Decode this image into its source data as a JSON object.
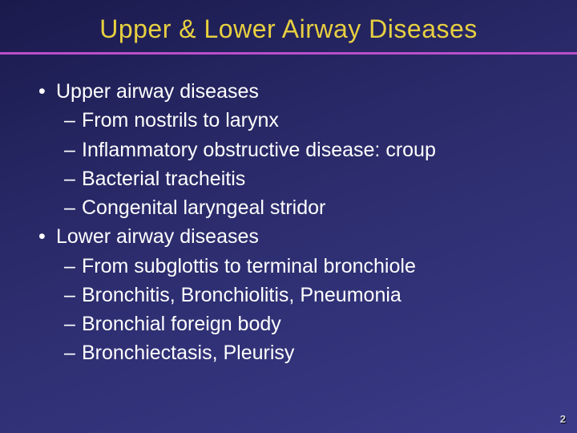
{
  "slide": {
    "title": "Upper & Lower Airway Diseases",
    "title_color": "#e8d040",
    "rule_color": "#b94fc9",
    "background_gradient": [
      "#1a1a4d",
      "#2a2a6a",
      "#3a3a88"
    ],
    "text_color": "#ffffff",
    "title_fontsize": 32,
    "body_fontsize": 25,
    "bullets": [
      {
        "level": 1,
        "text": "Upper airway diseases"
      },
      {
        "level": 2,
        "text": "From nostrils to larynx"
      },
      {
        "level": 2,
        "text": "Inflammatory obstructive disease: croup"
      },
      {
        "level": 2,
        "text": "Bacterial tracheitis"
      },
      {
        "level": 2,
        "text": "Congenital laryngeal stridor"
      },
      {
        "level": 1,
        "text": "Lower airway diseases"
      },
      {
        "level": 2,
        "text": "From subglottis to terminal bronchiole"
      },
      {
        "level": 2,
        "text": "Bronchitis, Bronchiolitis, Pneumonia"
      },
      {
        "level": 2,
        "text": "Bronchial foreign body"
      },
      {
        "level": 2,
        "text": "Bronchiectasis, Pleurisy"
      }
    ],
    "page_number": "2"
  }
}
